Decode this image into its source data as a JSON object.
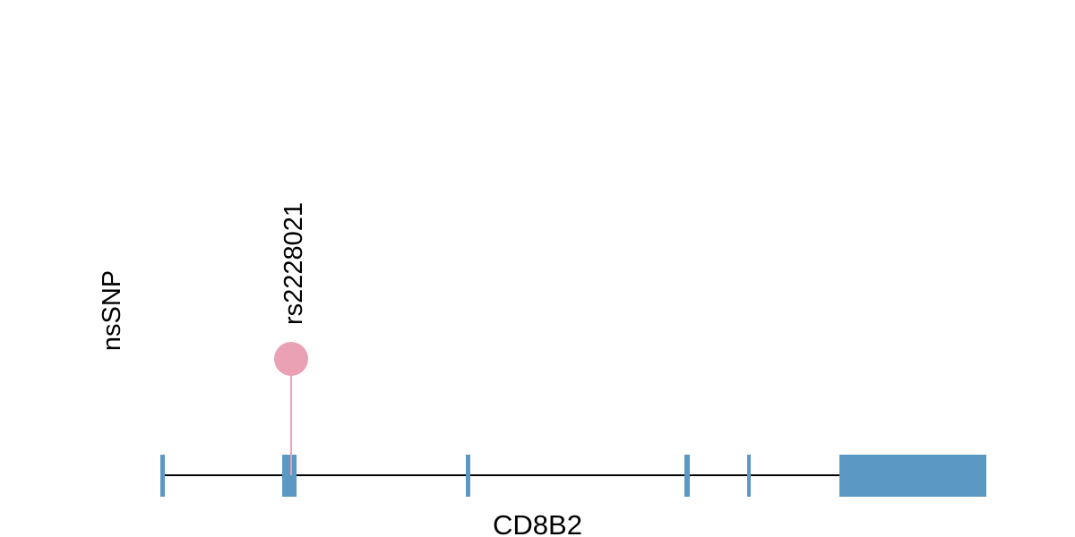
{
  "track_label": "nsSNP",
  "gene": {
    "name": "CD8B2",
    "color": "#5b98c4",
    "line_color": "#000000",
    "exons": [
      {
        "id": "exon-1"
      },
      {
        "id": "exon-2"
      },
      {
        "id": "exon-3"
      },
      {
        "id": "exon-4"
      },
      {
        "id": "exon-5"
      },
      {
        "id": "exon-6"
      }
    ]
  },
  "snps": [
    {
      "id": "rs2228021",
      "label": "rs2228021",
      "color": "#eaa1b3",
      "stem_color": "#eaa1b3"
    }
  ]
}
